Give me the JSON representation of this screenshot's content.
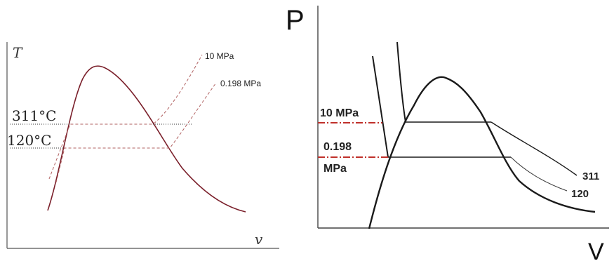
{
  "left_diagram": {
    "y_axis_label": "T",
    "x_axis_label": "v",
    "isobar_high_label": "10 MPa",
    "isobar_low_label": "0.198 MPa",
    "temp_high_label": "311°C",
    "temp_low_label": "120°C",
    "colors": {
      "dome": "#7a1f2a",
      "isobar": "#b06060",
      "axis": "#555555",
      "guide": "#333333"
    }
  },
  "right_diagram": {
    "y_axis_label": "P",
    "x_axis_label": "V",
    "pressure_high_label": "10 MPa",
    "pressure_low_label_line1": "0.198",
    "pressure_low_label_line2": "MPa",
    "isotherm_high_label": "311",
    "isotherm_low_label": "120",
    "colors": {
      "curve": "#1a1a1a",
      "dashed": "#c0302a",
      "axis": "#444444"
    }
  }
}
